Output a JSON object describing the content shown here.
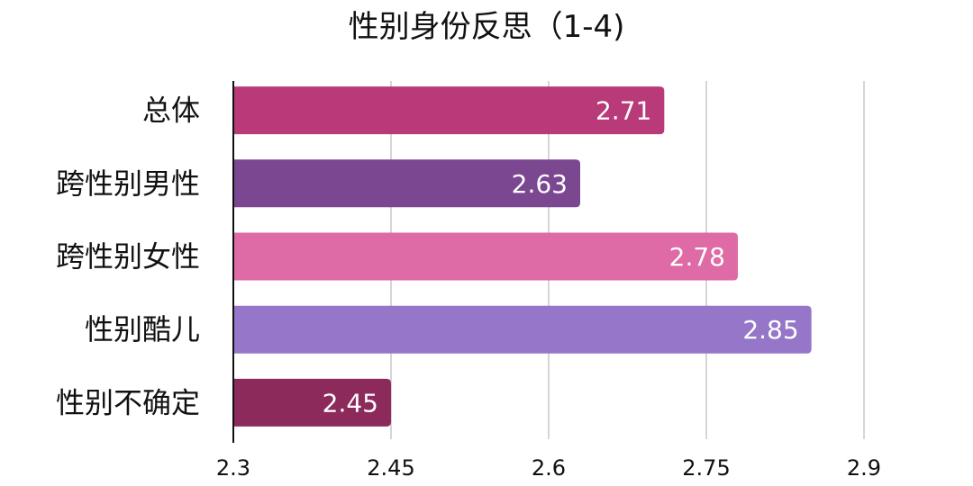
{
  "chart_data": {
    "type": "bar",
    "orientation": "horizontal",
    "title": "性别身份反思（1-4)",
    "categories": [
      "总体",
      "跨性别男性",
      "跨性别女性",
      "性别酷儿",
      "性别不确定"
    ],
    "values": [
      2.71,
      2.63,
      2.78,
      2.85,
      2.45
    ],
    "data_labels": [
      "2.71",
      "2.63",
      "2.78",
      "2.85",
      "2.45"
    ],
    "colors": [
      "#b83a78",
      "#7a4790",
      "#de6aa6",
      "#9576c9",
      "#8c2a5c"
    ],
    "xlim": [
      2.3,
      2.9
    ],
    "x_ticks": [
      2.3,
      2.45,
      2.6,
      2.75,
      2.9
    ],
    "x_tick_labels": [
      "2.3",
      "2.45",
      "2.6",
      "2.75",
      "2.9"
    ],
    "grid": "vertical",
    "legend": "none"
  }
}
